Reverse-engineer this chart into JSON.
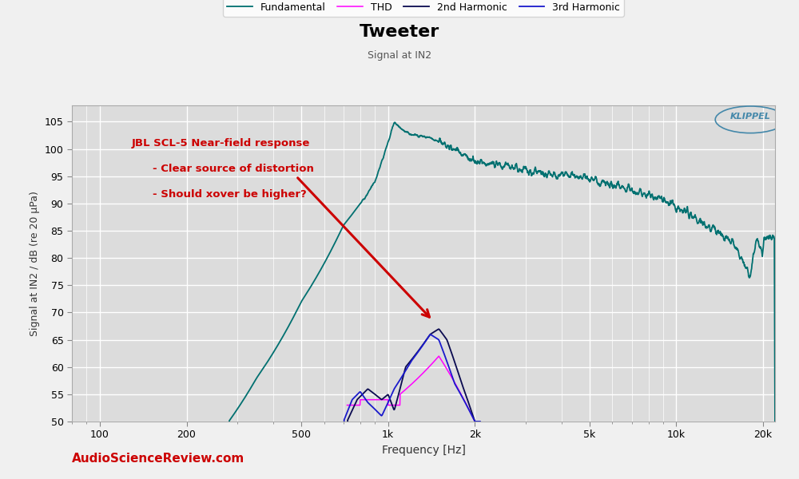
{
  "title": "Tweeter",
  "subtitle": "Signal at IN2",
  "ylabel": "Signal at IN2 / dB (re 20 µPa)",
  "xlabel": "Frequency [Hz]",
  "xlim": [
    80,
    22000
  ],
  "ylim": [
    50,
    108
  ],
  "yticks": [
    50,
    55,
    60,
    65,
    70,
    75,
    80,
    85,
    90,
    95,
    100,
    105
  ],
  "xtick_labels": [
    "100",
    "200",
    "500",
    "1k",
    "2k",
    "5k",
    "10k",
    "20k"
  ],
  "xtick_values": [
    100,
    200,
    500,
    1000,
    2000,
    5000,
    10000,
    20000
  ],
  "bg_color": "#dcdcdc",
  "grid_color": "#ffffff",
  "fig_color": "#f0f0f0",
  "fundamental_color": "#007070",
  "thd_color": "#ff00ff",
  "harmonic2_color": "#0a0a50",
  "harmonic3_color": "#1a1acc",
  "annotation_color": "#cc0000",
  "watermark_color": "#cc0000",
  "klippel_color": "#4488aa",
  "legend_entries": [
    "Fundamental",
    "THD",
    "2nd Harmonic",
    "3rd Harmonic"
  ]
}
